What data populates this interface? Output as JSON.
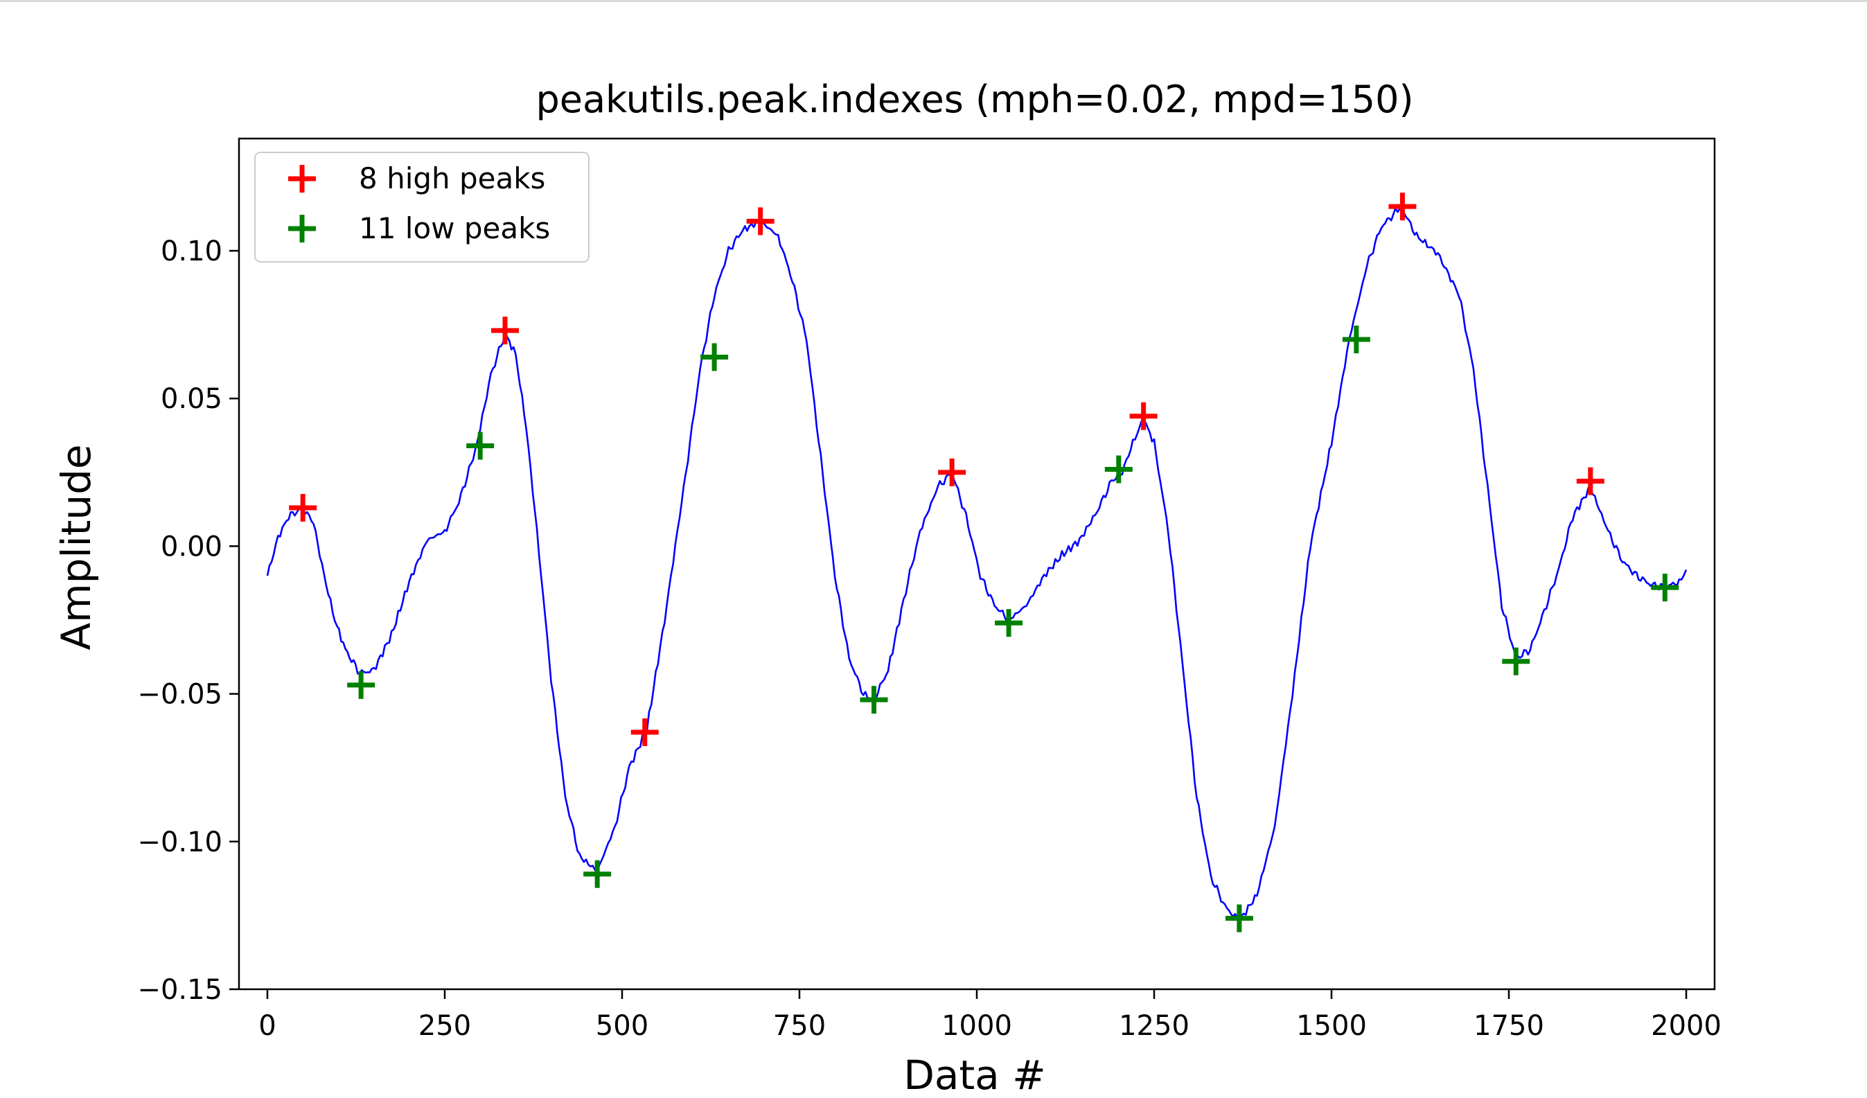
{
  "chart_data": {
    "type": "line",
    "title": "peakutils.peak.indexes (mph=0.02, mpd=150)",
    "xlabel": "Data #",
    "ylabel": "Amplitude",
    "xlim": [
      -40,
      2040
    ],
    "ylim": [
      -0.15,
      0.138
    ],
    "xticks": [
      0,
      250,
      500,
      750,
      1000,
      1250,
      1500,
      1750,
      2000
    ],
    "xtick_labels": [
      "0",
      "250",
      "500",
      "750",
      "1000",
      "1250",
      "1500",
      "1750",
      "2000"
    ],
    "yticks": [
      -0.15,
      -0.1,
      -0.05,
      0.0,
      0.05,
      0.1
    ],
    "ytick_labels": [
      "−0.15",
      "−0.10",
      "−0.05",
      "0.00",
      "0.05",
      "0.10"
    ],
    "grid": false,
    "legend_position": "top-left",
    "series": [
      {
        "style": "line",
        "color": "#0000ff",
        "x": [
          0,
          15,
          30,
          50,
          65,
          80,
          95,
          110,
          130,
          150,
          175,
          200,
          225,
          250,
          270,
          290,
          300,
          315,
          335,
          350,
          365,
          380,
          400,
          420,
          440,
          465,
          490,
          510,
          535,
          560,
          590,
          610,
          630,
          650,
          670,
          695,
          720,
          740,
          760,
          780,
          800,
          820,
          840,
          855,
          875,
          900,
          920,
          945,
          965,
          985,
          1005,
          1025,
          1045,
          1070,
          1095,
          1120,
          1145,
          1170,
          1190,
          1205,
          1220,
          1235,
          1250,
          1270,
          1290,
          1310,
          1330,
          1350,
          1370,
          1395,
          1420,
          1445,
          1470,
          1500,
          1525,
          1550,
          1570,
          1590,
          1600,
          1620,
          1650,
          1680,
          1700,
          1720,
          1740,
          1760,
          1780,
          1800,
          1820,
          1840,
          1865,
          1890,
          1910,
          1930,
          1950,
          1970,
          1990,
          2000
        ],
        "y": [
          -0.01,
          0.003,
          0.01,
          0.013,
          0.008,
          -0.01,
          -0.025,
          -0.035,
          -0.043,
          -0.042,
          -0.03,
          -0.012,
          0.002,
          0.005,
          0.015,
          0.03,
          0.04,
          0.058,
          0.072,
          0.065,
          0.04,
          0.005,
          -0.045,
          -0.085,
          -0.105,
          -0.11,
          -0.095,
          -0.075,
          -0.062,
          -0.025,
          0.025,
          0.06,
          0.085,
          0.1,
          0.107,
          0.11,
          0.105,
          0.09,
          0.07,
          0.03,
          -0.01,
          -0.038,
          -0.05,
          -0.052,
          -0.042,
          -0.015,
          0.005,
          0.02,
          0.025,
          0.01,
          -0.01,
          -0.02,
          -0.025,
          -0.02,
          -0.01,
          -0.003,
          0.002,
          0.012,
          0.022,
          0.025,
          0.035,
          0.043,
          0.035,
          0.005,
          -0.04,
          -0.085,
          -0.112,
          -0.122,
          -0.127,
          -0.118,
          -0.095,
          -0.05,
          0.0,
          0.035,
          0.07,
          0.095,
          0.108,
          0.113,
          0.114,
          0.105,
          0.099,
          0.085,
          0.06,
          0.02,
          -0.02,
          -0.038,
          -0.035,
          -0.022,
          -0.008,
          0.01,
          0.02,
          0.005,
          -0.005,
          -0.01,
          -0.013,
          -0.014,
          -0.012,
          -0.008
        ]
      },
      {
        "name": "8 high peaks",
        "style": "marker",
        "color": "#ff0000",
        "x": [
          50,
          335,
          532,
          695,
          965,
          1235,
          1600,
          1865
        ],
        "y": [
          0.013,
          0.073,
          -0.063,
          0.11,
          0.025,
          0.044,
          0.115,
          0.022
        ]
      },
      {
        "name": "11 low peaks",
        "style": "marker",
        "color": "#008000",
        "x": [
          132,
          300,
          465,
          630,
          855,
          1045,
          1200,
          1370,
          1535,
          1760,
          1970
        ],
        "y": [
          -0.047,
          0.034,
          -0.111,
          0.064,
          -0.052,
          -0.026,
          0.026,
          -0.126,
          0.07,
          -0.039,
          -0.014
        ]
      }
    ]
  }
}
